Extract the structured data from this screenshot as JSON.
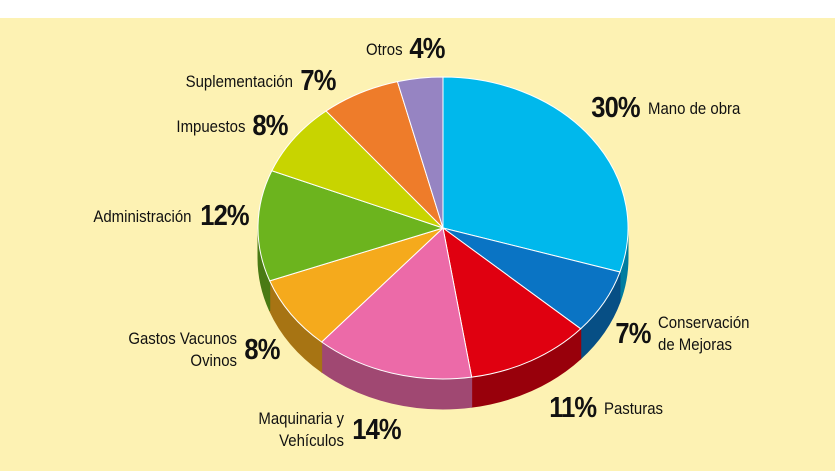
{
  "chart_data": {
    "type": "pie",
    "categories": [
      "Mano de obra",
      "Conservación de Mejoras",
      "Pasturas",
      "Maquinaria y Vehículos",
      "Gastos Vacunos Ovinos",
      "Administración",
      "Impuestos",
      "Suplementación",
      "Otros"
    ],
    "values": [
      30,
      7,
      11,
      14,
      8,
      12,
      8,
      7,
      4
    ],
    "value_labels": [
      "30%",
      "7%",
      "11%",
      "14%",
      "8%",
      "12%",
      "8%",
      "7%",
      "4%"
    ],
    "colors": [
      "#00b8ec",
      "#0a74c4",
      "#e00010",
      "#ec6aa8",
      "#f5aa1c",
      "#6cb41e",
      "#c8d400",
      "#ee7c2a",
      "#9684c2"
    ]
  }
}
